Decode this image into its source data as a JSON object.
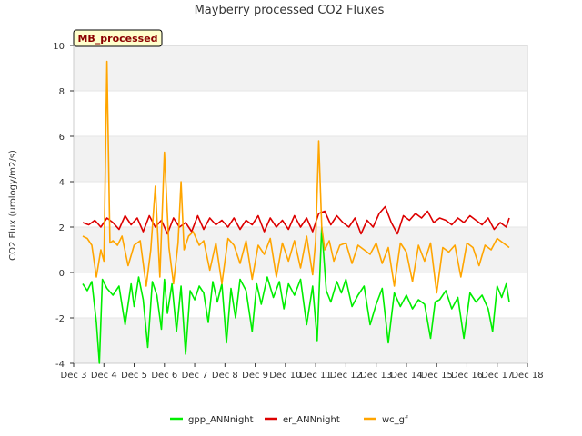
{
  "chart_data": {
    "type": "line",
    "title": "Mayberry processed CO2 Fluxes",
    "ylabel": "CO2 Flux (urology/m2/s)",
    "xlabel": "",
    "badge": "MB_processed",
    "xlim": [
      3,
      18
    ],
    "ylim": [
      -4,
      10
    ],
    "yticks": [
      -4,
      -2,
      0,
      2,
      4,
      6,
      8,
      10
    ],
    "xticks": [
      {
        "value": 3,
        "label": "Dec 3"
      },
      {
        "value": 4,
        "label": "Dec 4"
      },
      {
        "value": 5,
        "label": "Dec 5"
      },
      {
        "value": 6,
        "label": "Dec 6"
      },
      {
        "value": 7,
        "label": "Dec 7"
      },
      {
        "value": 8,
        "label": "Dec 8"
      },
      {
        "value": 9,
        "label": "Dec 9"
      },
      {
        "value": 10,
        "label": "Dec 10"
      },
      {
        "value": 11,
        "label": "Dec 11"
      },
      {
        "value": 12,
        "label": "Dec 12"
      },
      {
        "value": 13,
        "label": "Dec 13"
      },
      {
        "value": 14,
        "label": "Dec 14"
      },
      {
        "value": 15,
        "label": "Dec 15"
      },
      {
        "value": 16,
        "label": "Dec 16"
      },
      {
        "value": 17,
        "label": "Dec 17"
      },
      {
        "value": 18,
        "label": "Dec 18"
      }
    ],
    "series": [
      {
        "name": "gpp_ANNnight",
        "color": "#00ee00",
        "x": [
          3.3,
          3.45,
          3.6,
          3.75,
          3.85,
          3.95,
          4.1,
          4.3,
          4.5,
          4.7,
          4.9,
          5.0,
          5.15,
          5.3,
          5.45,
          5.6,
          5.75,
          5.9,
          6.0,
          6.1,
          6.25,
          6.4,
          6.55,
          6.7,
          6.85,
          7.0,
          7.15,
          7.3,
          7.45,
          7.6,
          7.75,
          7.9,
          8.05,
          8.2,
          8.35,
          8.5,
          8.7,
          8.9,
          9.05,
          9.2,
          9.4,
          9.6,
          9.8,
          9.95,
          10.1,
          10.3,
          10.5,
          10.7,
          10.9,
          11.05,
          11.2,
          11.35,
          11.5,
          11.7,
          11.85,
          12.0,
          12.2,
          12.4,
          12.6,
          12.8,
          13.0,
          13.2,
          13.4,
          13.6,
          13.8,
          14.0,
          14.2,
          14.4,
          14.6,
          14.8,
          14.95,
          15.1,
          15.3,
          15.5,
          15.7,
          15.9,
          16.1,
          16.3,
          16.5,
          16.7,
          16.85,
          17.0,
          17.15,
          17.3,
          17.4
        ],
        "y": [
          -0.5,
          -0.8,
          -0.4,
          -2.2,
          -4.0,
          -0.3,
          -0.7,
          -1.0,
          -0.6,
          -2.3,
          -0.5,
          -1.5,
          -0.2,
          -1.2,
          -3.3,
          -0.4,
          -1.0,
          -2.5,
          -0.3,
          -1.8,
          -0.5,
          -2.6,
          -0.6,
          -3.6,
          -0.8,
          -1.2,
          -0.6,
          -0.9,
          -2.2,
          -0.4,
          -1.3,
          -0.5,
          -3.1,
          -0.7,
          -2.0,
          -0.3,
          -0.8,
          -2.6,
          -0.5,
          -1.4,
          -0.2,
          -1.1,
          -0.4,
          -1.6,
          -0.5,
          -1.0,
          -0.3,
          -2.3,
          -0.6,
          -3.0,
          2.0,
          -0.8,
          -1.3,
          -0.4,
          -0.9,
          -0.3,
          -1.5,
          -1.0,
          -0.6,
          -2.3,
          -1.4,
          -0.7,
          -3.1,
          -0.9,
          -1.5,
          -1.0,
          -1.6,
          -1.2,
          -1.4,
          -2.9,
          -1.3,
          -1.2,
          -0.8,
          -1.6,
          -1.1,
          -2.9,
          -0.9,
          -1.3,
          -1.0,
          -1.6,
          -2.6,
          -0.6,
          -1.1,
          -0.5,
          -1.3
        ]
      },
      {
        "name": "er_ANNnight",
        "color": "#dd0000",
        "x": [
          3.3,
          3.5,
          3.7,
          3.9,
          4.1,
          4.3,
          4.5,
          4.7,
          4.9,
          5.1,
          5.3,
          5.5,
          5.7,
          5.9,
          6.1,
          6.3,
          6.5,
          6.7,
          6.9,
          7.1,
          7.3,
          7.5,
          7.7,
          7.9,
          8.1,
          8.3,
          8.5,
          8.7,
          8.9,
          9.1,
          9.3,
          9.5,
          9.7,
          9.9,
          10.1,
          10.3,
          10.5,
          10.7,
          10.9,
          11.1,
          11.3,
          11.5,
          11.7,
          11.9,
          12.1,
          12.3,
          12.5,
          12.7,
          12.9,
          13.1,
          13.3,
          13.5,
          13.7,
          13.9,
          14.1,
          14.3,
          14.5,
          14.7,
          14.9,
          15.1,
          15.3,
          15.5,
          15.7,
          15.9,
          16.1,
          16.3,
          16.5,
          16.7,
          16.9,
          17.1,
          17.3,
          17.4
        ],
        "y": [
          2.2,
          2.1,
          2.3,
          2.0,
          2.4,
          2.2,
          1.9,
          2.5,
          2.1,
          2.4,
          1.8,
          2.5,
          2.0,
          2.3,
          1.7,
          2.4,
          2.0,
          2.2,
          1.8,
          2.5,
          1.9,
          2.4,
          2.1,
          2.3,
          2.0,
          2.4,
          1.9,
          2.3,
          2.1,
          2.5,
          1.8,
          2.4,
          2.0,
          2.3,
          1.9,
          2.5,
          2.0,
          2.4,
          1.8,
          2.6,
          2.7,
          2.1,
          2.5,
          2.2,
          2.0,
          2.4,
          1.7,
          2.3,
          2.0,
          2.6,
          2.9,
          2.2,
          1.7,
          2.5,
          2.3,
          2.6,
          2.4,
          2.7,
          2.2,
          2.4,
          2.3,
          2.1,
          2.4,
          2.2,
          2.5,
          2.3,
          2.1,
          2.4,
          1.9,
          2.2,
          2.0,
          2.4
        ]
      },
      {
        "name": "wc_gf",
        "color": "#ffa500",
        "x": [
          3.3,
          3.45,
          3.6,
          3.75,
          3.9,
          4.0,
          4.1,
          4.2,
          4.3,
          4.45,
          4.6,
          4.8,
          5.0,
          5.2,
          5.4,
          5.55,
          5.7,
          5.85,
          6.0,
          6.15,
          6.3,
          6.45,
          6.55,
          6.65,
          6.8,
          6.95,
          7.05,
          7.15,
          7.3,
          7.5,
          7.7,
          7.9,
          8.1,
          8.3,
          8.5,
          8.7,
          8.9,
          9.1,
          9.3,
          9.5,
          9.7,
          9.9,
          10.1,
          10.3,
          10.5,
          10.7,
          10.9,
          11.0,
          11.1,
          11.2,
          11.3,
          11.45,
          11.6,
          11.8,
          12.0,
          12.2,
          12.4,
          12.6,
          12.8,
          13.0,
          13.2,
          13.4,
          13.6,
          13.8,
          14.0,
          14.2,
          14.4,
          14.6,
          14.8,
          15.0,
          15.2,
          15.4,
          15.6,
          15.8,
          16.0,
          16.2,
          16.4,
          16.6,
          16.8,
          17.0,
          17.2,
          17.4
        ],
        "y": [
          1.6,
          1.5,
          1.2,
          -0.2,
          1.0,
          0.5,
          9.3,
          1.3,
          1.4,
          1.2,
          1.6,
          0.3,
          1.2,
          1.4,
          -0.6,
          1.0,
          3.8,
          -0.2,
          5.3,
          1.1,
          -0.5,
          1.3,
          4.0,
          1.0,
          1.6,
          1.8,
          1.5,
          1.2,
          1.4,
          0.1,
          1.3,
          -0.5,
          1.5,
          1.2,
          0.4,
          1.4,
          -0.3,
          1.2,
          0.8,
          1.5,
          -0.2,
          1.3,
          0.5,
          1.4,
          0.2,
          1.6,
          -0.1,
          1.4,
          5.8,
          2.0,
          1.0,
          1.4,
          0.5,
          1.2,
          1.3,
          0.4,
          1.2,
          1.0,
          0.8,
          1.3,
          0.4,
          1.1,
          -0.6,
          1.3,
          0.9,
          -0.4,
          1.2,
          0.5,
          1.3,
          -0.9,
          1.1,
          0.9,
          1.2,
          -0.2,
          1.3,
          1.1,
          0.3,
          1.2,
          1.0,
          1.5,
          1.3,
          1.1
        ]
      }
    ],
    "legend_position": "bottom-center"
  }
}
